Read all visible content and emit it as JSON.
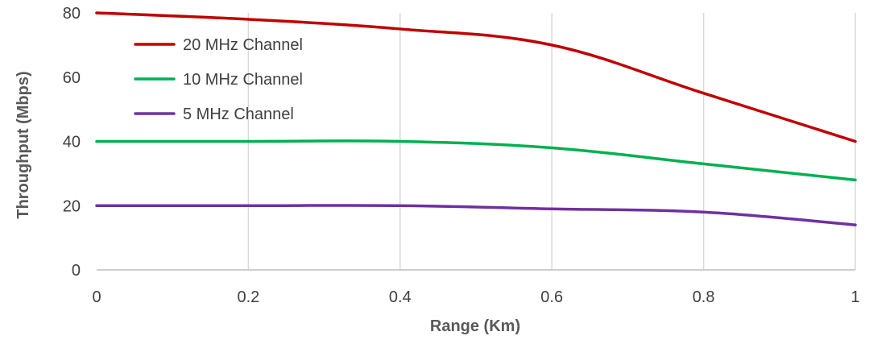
{
  "chart_data": {
    "type": "line",
    "title": "",
    "xlabel": "Range (Km)",
    "ylabel": "Throughput (Mbps)",
    "xlim": [
      0,
      1
    ],
    "ylim": [
      0,
      80
    ],
    "x_ticks": [
      "0",
      "0.2",
      "0.4",
      "0.6",
      "0.8",
      "1"
    ],
    "y_ticks": [
      "0",
      "20",
      "40",
      "60",
      "80"
    ],
    "grid": "vertical",
    "legend_position": "top-left",
    "x": [
      0,
      0.2,
      0.4,
      0.6,
      0.8,
      1.0
    ],
    "series": [
      {
        "name": "20 MHz Channel",
        "color": "#c00000",
        "values": [
          80,
          78,
          75,
          70,
          55,
          40
        ]
      },
      {
        "name": "10 MHz Channel",
        "color": "#00b050",
        "values": [
          40,
          40,
          40,
          38,
          33,
          28
        ]
      },
      {
        "name": "5 MHz Channel",
        "color": "#7030a0",
        "values": [
          20,
          20,
          20,
          19,
          18,
          14
        ]
      }
    ]
  }
}
